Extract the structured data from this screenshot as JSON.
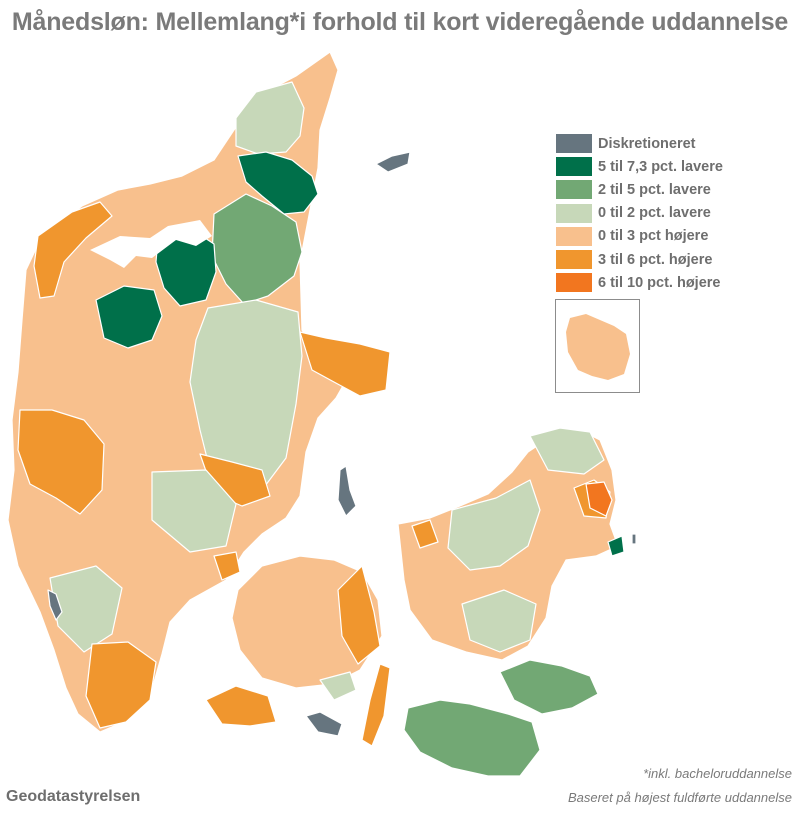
{
  "title": "Månedsløn: Mellemlang*i forhold til kort videregående uddannelse",
  "colors": {
    "discretionary": "#66757f",
    "dark_green": "#00704a",
    "mid_green": "#72a874",
    "light_green": "#c7d8b9",
    "light_orange": "#f8c08d",
    "mid_orange": "#f0962e",
    "dark_orange": "#f2761f",
    "inset_island": "#f8c08d"
  },
  "legend": {
    "items": [
      {
        "label": "Diskretioneret",
        "color": "#66757f"
      },
      {
        "label": "5 til 7,3 pct. lavere",
        "color": "#00704a"
      },
      {
        "label": "2 til 5 pct. lavere",
        "color": "#72a874"
      },
      {
        "label": "0 til 2 pct. lavere",
        "color": "#c7d8b9"
      },
      {
        "label": "0 til 3 pct højere",
        "color": "#f8c08d"
      },
      {
        "label": "3 til 6 pct. højere",
        "color": "#f0962e"
      },
      {
        "label": "6 til 10 pct. højere",
        "color": "#f2761f"
      }
    ]
  },
  "footer": {
    "source": "Geodatastyrelsen",
    "note1": "*inkl. bacheloruddannelse",
    "note2": "Baseret på højest fuldførte uddannelse"
  }
}
